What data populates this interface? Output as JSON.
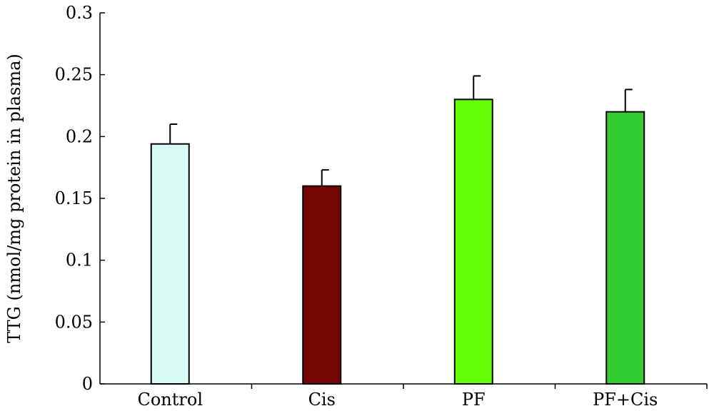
{
  "chart_data": {
    "type": "bar",
    "title": "",
    "xlabel": "",
    "ylabel": "TTG (nmol/mg protein in plasma)",
    "categories": [
      "Control",
      "Cis",
      "PF",
      "PF+Cis"
    ],
    "values": [
      0.194,
      0.16,
      0.23,
      0.22
    ],
    "errors": [
      0.016,
      0.013,
      0.019,
      0.018
    ],
    "colors": [
      "#d9fbf6",
      "#770606",
      "#66ff0a",
      "#33cc33"
    ],
    "ylim": [
      0,
      0.3
    ],
    "yticks": [
      "0",
      "0.05",
      "0.1",
      "0.15",
      "0.2",
      "0.25",
      "0.3"
    ],
    "grid": false,
    "legend": "none"
  }
}
